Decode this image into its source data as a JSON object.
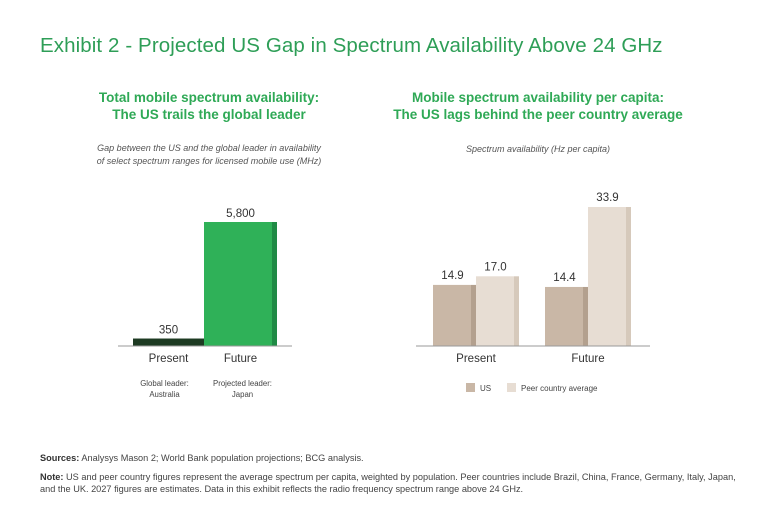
{
  "title": "Exhibit 2 - Projected US Gap in Spectrum Availability Above 24 GHz",
  "left_panel": {
    "title_line1": "Total mobile spectrum availability:",
    "title_line2": "The US trails the global leader",
    "subtitle_line1": "Gap between the US and the global leader in availability",
    "subtitle_line2": "of select spectrum ranges for licensed mobile use (MHz)"
  },
  "right_panel": {
    "title_line1": "Mobile spectrum availability per capita:",
    "title_line2": "The US lags behind the peer country average",
    "subtitle": "Spectrum availability (Hz per capita)"
  },
  "colors": {
    "green": "#2fb158",
    "green_dark": "#1f8a45",
    "dark": "#1d3a22",
    "us": "#c9b7a6",
    "us_dark": "#b3a08e",
    "peer": "#e7ddd3",
    "peer_dark": "#d6c9bb",
    "axis": "#999999"
  },
  "chart_data": [
    {
      "type": "bar",
      "title": "Total mobile spectrum availability: The US trails the global leader",
      "ylabel": "Gap between the US and the global leader in availability of select spectrum ranges for licensed mobile use (MHz)",
      "categories": [
        "Present",
        "Future"
      ],
      "values": [
        350,
        5800
      ],
      "value_labels": [
        "350",
        "5,800"
      ],
      "category_notes": [
        [
          "Global leader:",
          "Australia"
        ],
        [
          "Projected leader:",
          "Japan"
        ]
      ],
      "ylim": [
        0,
        5800
      ]
    },
    {
      "type": "bar",
      "title": "Mobile spectrum availability per capita: The US lags behind the peer country average",
      "ylabel": "Spectrum availability (Hz per capita)",
      "categories": [
        "Present",
        "Future"
      ],
      "series": [
        {
          "name": "US",
          "values": [
            14.9,
            14.4
          ]
        },
        {
          "name": "Peer country average",
          "values": [
            17.0,
            33.9
          ]
        }
      ],
      "ylim": [
        0,
        33.9
      ],
      "legend": "bottom"
    }
  ],
  "footer": {
    "sources_label": "Sources:",
    "sources_text": "Analysys Mason 2; World Bank population projections; BCG analysis.",
    "note_label": "Note:",
    "note_text": "US and peer country figures represent the average spectrum per capita, weighted by population. Peer countries include Brazil, China, France, Germany, Italy, Japan, and the UK. 2027 figures are estimates. Data in this exhibit reflects the radio frequency spectrum range above 24 GHz."
  }
}
